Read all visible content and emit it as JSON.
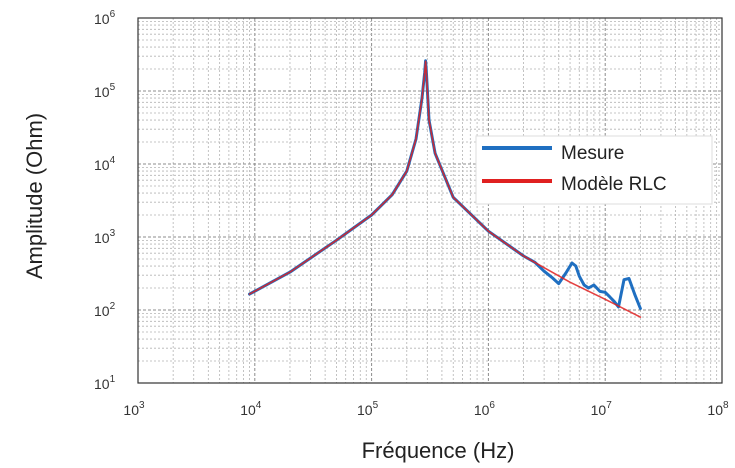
{
  "chart_data": {
    "type": "line",
    "title": "",
    "xlabel": "Fréquence (Hz)",
    "ylabel": "Amplitude (Ohm)",
    "x_scale": "log",
    "y_scale": "log",
    "xlim": [
      1000,
      100000000
    ],
    "ylim": [
      10,
      1000000
    ],
    "x_ticks": [
      {
        "base": "10",
        "exp": "3"
      },
      {
        "base": "10",
        "exp": "4"
      },
      {
        "base": "10",
        "exp": "5"
      },
      {
        "base": "10",
        "exp": "6"
      },
      {
        "base": "10",
        "exp": "7"
      },
      {
        "base": "10",
        "exp": "8"
      }
    ],
    "y_ticks": [
      {
        "base": "10",
        "exp": "1"
      },
      {
        "base": "10",
        "exp": "2"
      },
      {
        "base": "10",
        "exp": "3"
      },
      {
        "base": "10",
        "exp": "4"
      },
      {
        "base": "10",
        "exp": "5"
      },
      {
        "base": "10",
        "exp": "6"
      }
    ],
    "grid": true,
    "legend_position": "right",
    "series": [
      {
        "name": "Mesure",
        "color": "#1f6fc1",
        "x": [
          9000,
          20000,
          50000,
          100000,
          150000,
          200000,
          240000,
          270000,
          285000,
          290000,
          295000,
          310000,
          350000,
          500000,
          1000000,
          2000000,
          2500000,
          3000000,
          3500000,
          4000000,
          4600000,
          5200000,
          5600000,
          6000000,
          6600000,
          7200000,
          8000000,
          9000000,
          10000000,
          11000000,
          12000000,
          13000000,
          14500000,
          16000000,
          18000000,
          20000000
        ],
        "y": [
          165,
          330,
          900,
          2000,
          3800,
          8000,
          22000,
          80000,
          180000,
          260000,
          170000,
          40000,
          14000,
          3500,
          1200,
          550,
          450,
          340,
          280,
          230,
          320,
          440,
          400,
          290,
          220,
          200,
          220,
          180,
          175,
          150,
          130,
          110,
          260,
          270,
          160,
          105
        ]
      },
      {
        "name": "Modèle RLC",
        "color": "#e02020",
        "x": [
          9000,
          20000,
          50000,
          100000,
          150000,
          200000,
          240000,
          270000,
          285000,
          290000,
          295000,
          310000,
          350000,
          500000,
          1000000,
          2000000,
          3000000,
          5000000,
          10000000,
          20000000
        ],
        "y": [
          165,
          330,
          900,
          2000,
          3800,
          8000,
          22000,
          80000,
          180000,
          255000,
          170000,
          40000,
          14000,
          3500,
          1200,
          550,
          380,
          240,
          140,
          80
        ]
      }
    ]
  }
}
